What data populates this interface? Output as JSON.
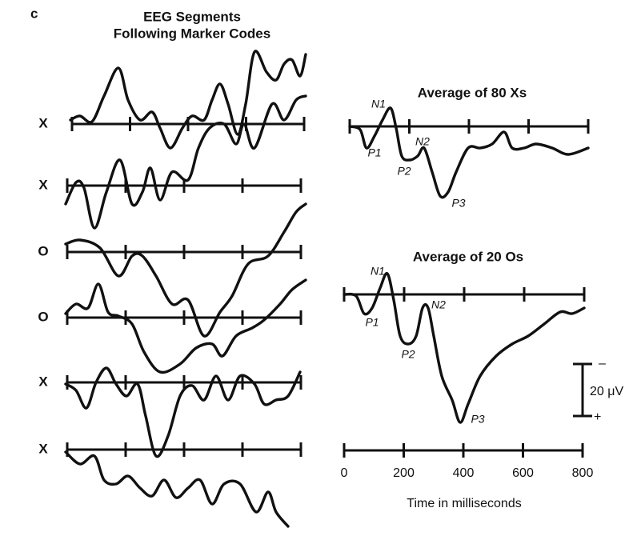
{
  "panel_label": "c",
  "left": {
    "title": [
      "EEG Segments",
      "Following Marker Codes"
    ],
    "rows": [
      "X",
      "X",
      "O",
      "O",
      "X",
      "X"
    ]
  },
  "right": {
    "averages": [
      {
        "title": "Average of 80 Xs",
        "peaks": [
          "N1",
          "P1",
          "N2",
          "P2",
          "P3"
        ]
      },
      {
        "title": "Average of 20 Os",
        "peaks": [
          "N1",
          "P1",
          "N2",
          "P2",
          "P3"
        ]
      }
    ],
    "scale": {
      "minus": "–",
      "label": "20 μV",
      "plus": "+"
    },
    "time_axis": {
      "ticks": [
        0,
        200,
        400,
        600,
        800
      ],
      "label": "Time in milliseconds"
    }
  }
}
